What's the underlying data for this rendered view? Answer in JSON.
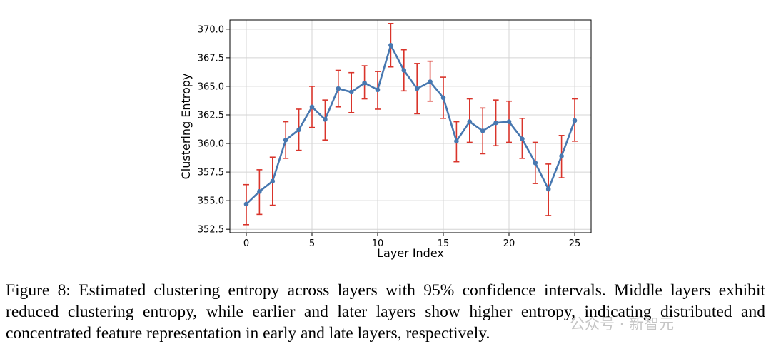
{
  "chart_data": {
    "type": "line",
    "xlabel": "Layer Index",
    "ylabel": "Clustering Entropy",
    "xlim": [
      -1.25,
      26.25
    ],
    "ylim": [
      352.2,
      370.8
    ],
    "xticks": [
      0,
      5,
      10,
      15,
      20,
      25
    ],
    "yticks": [
      352.5,
      355.0,
      357.5,
      360.0,
      362.5,
      365.0,
      367.5,
      370.0
    ],
    "ytick_labels": [
      "352.5",
      "355.0",
      "357.5",
      "360.0",
      "362.5",
      "365.0",
      "367.5",
      "370.0"
    ],
    "grid": true,
    "x": [
      0,
      1,
      2,
      3,
      4,
      5,
      6,
      7,
      8,
      9,
      10,
      11,
      12,
      13,
      14,
      15,
      16,
      17,
      18,
      19,
      20,
      21,
      22,
      23,
      24,
      25
    ],
    "series": [
      {
        "values": [
          354.7,
          355.8,
          356.7,
          360.3,
          361.2,
          363.2,
          362.1,
          364.8,
          364.5,
          365.3,
          364.7,
          368.6,
          366.4,
          364.8,
          365.4,
          364.0,
          360.2,
          361.9,
          361.1,
          361.8,
          361.9,
          360.4,
          358.3,
          356.0,
          358.9,
          362.0
        ],
        "lower": [
          352.9,
          353.8,
          354.6,
          358.7,
          359.4,
          361.4,
          360.3,
          363.2,
          362.7,
          363.9,
          363.0,
          366.7,
          364.6,
          362.6,
          363.7,
          362.2,
          358.4,
          360.1,
          359.1,
          359.8,
          360.1,
          358.7,
          356.5,
          353.7,
          357.0,
          360.2
        ],
        "upper": [
          356.4,
          357.7,
          358.8,
          361.9,
          363.0,
          365.0,
          363.8,
          366.4,
          366.2,
          366.8,
          366.3,
          370.5,
          368.2,
          367.0,
          367.2,
          365.8,
          361.9,
          363.9,
          363.1,
          363.8,
          363.7,
          362.2,
          360.1,
          358.2,
          360.7,
          363.9
        ]
      }
    ],
    "colors": {
      "line": "#4878b0",
      "errorbar": "#d9342b",
      "grid": "#d4d4d4"
    }
  },
  "caption": "Figure 8: Estimated clustering entropy across layers with 95% confidence intervals. Middle layers exhibit reduced clustering entropy, while earlier and later layers show higher entropy, indicating distributed and concentrated feature representation in early and late layers, respectively.",
  "watermark": "公众号 · 新智元"
}
